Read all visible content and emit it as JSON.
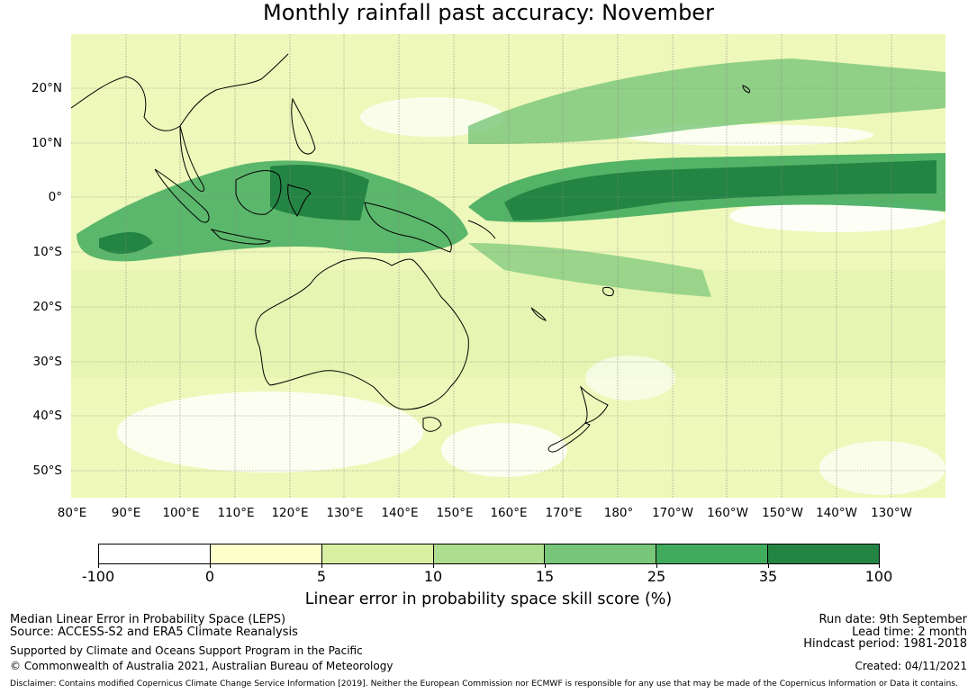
{
  "title": "Monthly rainfall past accuracy: November",
  "map": {
    "lat_labels": [
      "20°N",
      "10°N",
      "0°",
      "10°S",
      "20°S",
      "30°S",
      "40°S",
      "50°S"
    ],
    "lon_labels": [
      "80°E",
      "90°E",
      "100°E",
      "110°E",
      "120°E",
      "130°E",
      "140°E",
      "150°E",
      "160°E",
      "170°E",
      "180°",
      "170°W",
      "160°W",
      "150°W",
      "140°W",
      "130°W"
    ]
  },
  "colorbar": {
    "ticks": [
      "-100",
      "0",
      "5",
      "10",
      "15",
      "25",
      "35",
      "100"
    ],
    "colors": [
      "#ffffff",
      "#ffffcc",
      "#d9f0a3",
      "#addd8e",
      "#78c679",
      "#41ab5d",
      "#238443"
    ],
    "label": "Linear error in probability space skill score (%)"
  },
  "footer": {
    "left": {
      "line1": "Median Linear Error in Probability Space (LEPS)",
      "line2": "Source: ACCESS-S2 and ERA5 Climate Reanalysis",
      "line3": "Supported by Climate and Oceans Support Program in the Pacific",
      "line4": "© Commonwealth of Australia 2021, Australian Bureau of Meteorology"
    },
    "right": {
      "run_date": "Run date: 9th September",
      "lead_time": "Lead time: 2 month",
      "hindcast": "Hindcast period: 1981-2018",
      "created": "Created: 04/11/2021"
    },
    "disclaimer": "Disclaimer: Contains modified Copernicus Climate Change Service Information [2019]. Neither the European Commission nor ECMWF is responsible for any use that may be made of the Copernicus Information or Data it contains."
  }
}
